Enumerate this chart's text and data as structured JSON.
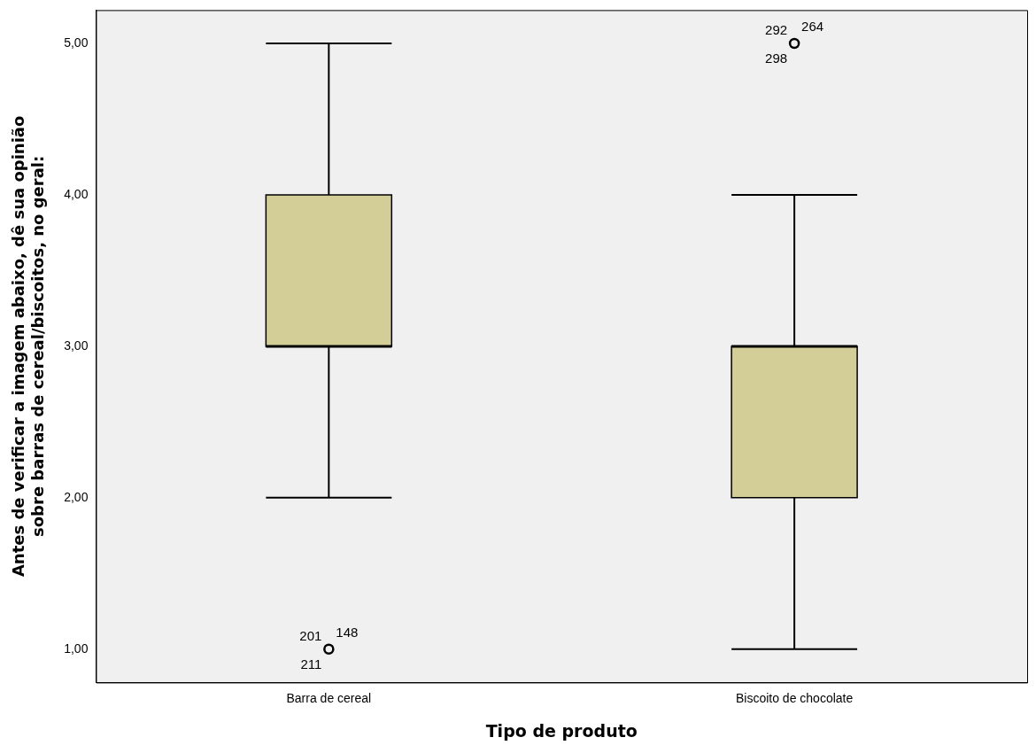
{
  "chart_data": {
    "type": "box",
    "xlabel": "Tipo de produto",
    "ylabel": "Antes de verificar a imagem abaixo, dê sua opinião sobre barras de cereal/biscoitos, no geral:",
    "categories": [
      "Barra de cereal",
      "Biscoito de chocolate"
    ],
    "series": [
      {
        "color": "#d3ce97",
        "boxes": [
          {
            "low": 2,
            "q1": 3,
            "median": 3,
            "q3": 4,
            "high": 5,
            "outliers": [
              1
            ]
          },
          {
            "low": 1,
            "q1": 2,
            "median": 3,
            "q3": 3,
            "high": 4,
            "outliers": [
              5
            ]
          }
        ]
      }
    ],
    "ylim": [
      0.78,
      5.22
    ],
    "yticks": [
      {
        "value": 1,
        "label": "1,00"
      },
      {
        "value": 2,
        "label": "2,00"
      },
      {
        "value": 3,
        "label": "3,00"
      },
      {
        "value": 4,
        "label": "4,00"
      },
      {
        "value": 5,
        "label": "5,00"
      }
    ],
    "grid": false,
    "legend": false,
    "annotations": [
      "201",
      "148",
      "211",
      "292",
      "264",
      "298"
    ]
  }
}
